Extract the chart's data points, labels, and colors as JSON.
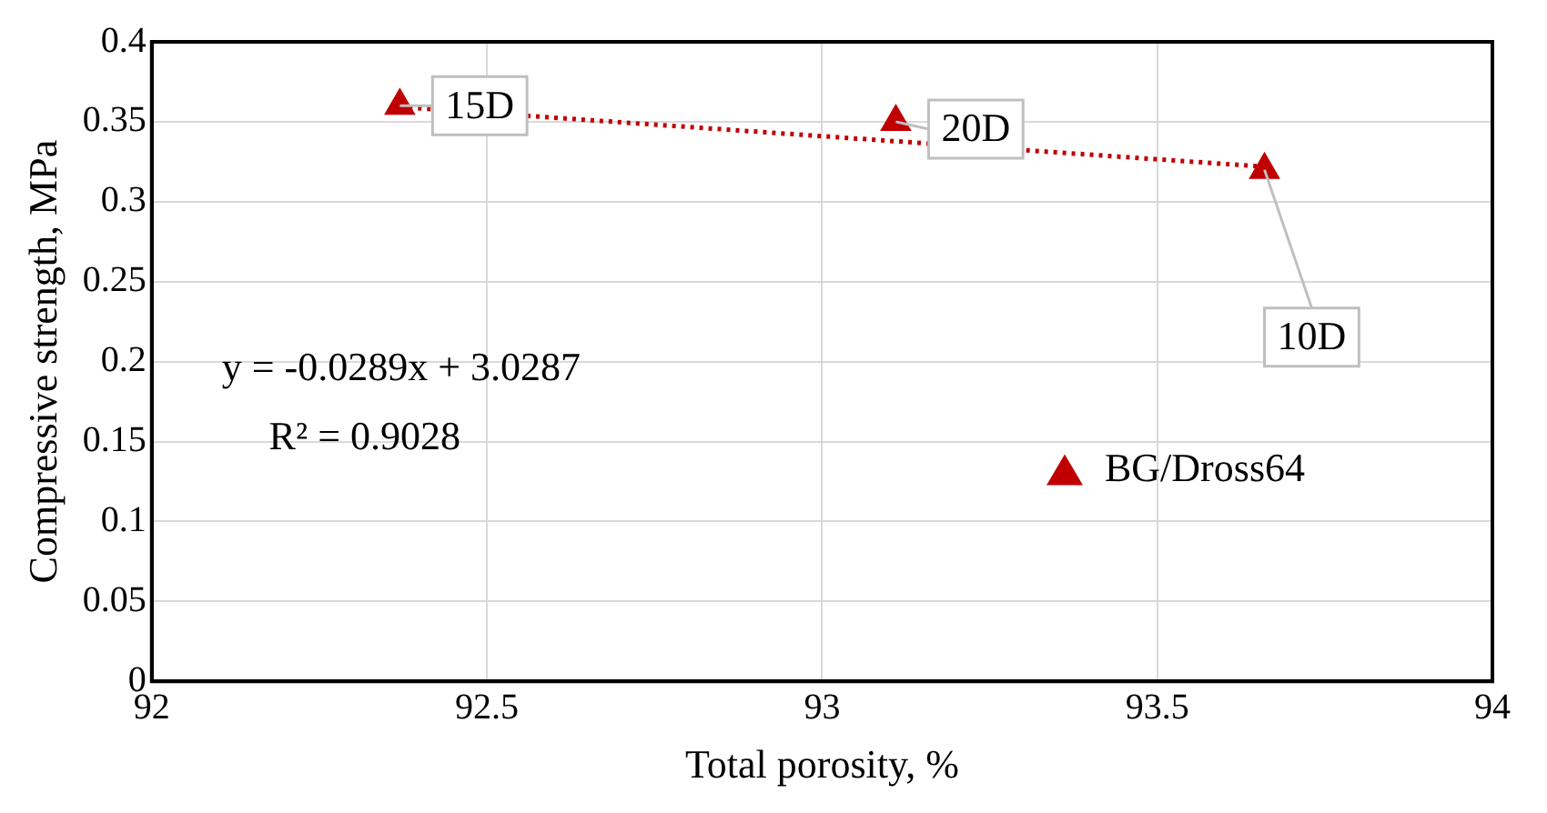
{
  "chart_data": {
    "type": "scatter",
    "xlabel": "Total porosity, %",
    "ylabel": "Compressive strength, MPa",
    "xlim": [
      92,
      94
    ],
    "xticks": [
      92,
      92.5,
      93,
      93.5,
      94
    ],
    "ylim": [
      0,
      0.4
    ],
    "yticks": [
      0,
      0.05,
      0.1,
      0.15,
      0.2,
      0.25,
      0.3,
      0.35,
      0.4
    ],
    "grid": true,
    "legend": "right",
    "marker": "triangle",
    "series": [
      {
        "name": "BG/Dross64",
        "color": "#c00000",
        "x": [
          92.37,
          93.11,
          93.66
        ],
        "values": [
          0.36,
          0.35,
          0.32
        ]
      },
      {
        "type": "line",
        "color": "#c00000",
        "line_style": "dotted",
        "marker": "none",
        "x": [
          92.37,
          93.66
        ],
        "values": [
          0.3592,
          0.3219
        ]
      }
    ],
    "annotations": [
      {
        "text": "15D",
        "x": 92.37,
        "y": 0.36
      },
      {
        "text": "20D",
        "x": 93.11,
        "y": 0.35
      },
      {
        "text": "10D",
        "x": 93.66,
        "y": 0.32
      },
      "y = -0.0289x + 3.0287",
      "R² = 0.9028"
    ]
  }
}
